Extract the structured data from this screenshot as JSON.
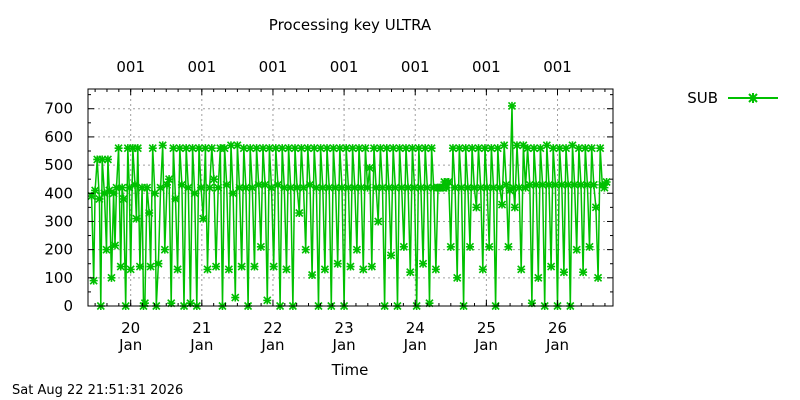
{
  "chart_data": {
    "type": "line",
    "title": "Processing key ULTRA",
    "xlabel": "Time",
    "ylabel": "",
    "ylim": [
      0,
      770
    ],
    "y_ticks": [
      0,
      100,
      200,
      300,
      400,
      500,
      600,
      700
    ],
    "x_range_days": [
      19.4,
      26.78
    ],
    "x_ticks": [
      {
        "day": 20,
        "label": "20",
        "sublabel": "Jan"
      },
      {
        "day": 21,
        "label": "21",
        "sublabel": "Jan"
      },
      {
        "day": 22,
        "label": "22",
        "sublabel": "Jan"
      },
      {
        "day": 23,
        "label": "23",
        "sublabel": "Jan"
      },
      {
        "day": 24,
        "label": "24",
        "sublabel": "Jan"
      },
      {
        "day": 25,
        "label": "25",
        "sublabel": "Jan"
      },
      {
        "day": 26,
        "label": "26",
        "sublabel": "Jan"
      }
    ],
    "top_ticks": [
      {
        "day": 20,
        "label": "001"
      },
      {
        "day": 21,
        "label": "001"
      },
      {
        "day": 22,
        "label": "001"
      },
      {
        "day": 23,
        "label": "001"
      },
      {
        "day": 24,
        "label": "001"
      },
      {
        "day": 25,
        "label": "001"
      },
      {
        "day": 26,
        "label": "001"
      }
    ],
    "grid": true,
    "legend": "top-right",
    "series": [
      {
        "name": "SUB",
        "color": "#00c000",
        "marker": "cross",
        "points": [
          [
            19.45,
            390
          ],
          [
            19.48,
            90
          ],
          [
            19.5,
            410
          ],
          [
            19.53,
            520
          ],
          [
            19.56,
            380
          ],
          [
            19.58,
            0
          ],
          [
            19.6,
            520
          ],
          [
            19.63,
            400
          ],
          [
            19.66,
            200
          ],
          [
            19.68,
            520
          ],
          [
            19.7,
            410
          ],
          [
            19.73,
            100
          ],
          [
            19.76,
            400
          ],
          [
            19.78,
            215
          ],
          [
            19.8,
            420
          ],
          [
            19.83,
            560
          ],
          [
            19.86,
            140
          ],
          [
            19.88,
            420
          ],
          [
            19.9,
            380
          ],
          [
            19.93,
            0
          ],
          [
            19.96,
            560
          ],
          [
            19.98,
            420
          ],
          [
            20.0,
            130
          ],
          [
            20.03,
            560
          ],
          [
            20.06,
            430
          ],
          [
            20.08,
            310
          ],
          [
            20.1,
            560
          ],
          [
            20.13,
            140
          ],
          [
            20.16,
            420
          ],
          [
            20.18,
            0
          ],
          [
            20.2,
            10
          ],
          [
            20.23,
            420
          ],
          [
            20.26,
            330
          ],
          [
            20.28,
            140
          ],
          [
            20.31,
            560
          ],
          [
            20.34,
            400
          ],
          [
            20.36,
            0
          ],
          [
            20.39,
            150
          ],
          [
            20.42,
            420
          ],
          [
            20.45,
            570
          ],
          [
            20.48,
            200
          ],
          [
            20.51,
            430
          ],
          [
            20.54,
            450
          ],
          [
            20.57,
            10
          ],
          [
            20.6,
            560
          ],
          [
            20.63,
            380
          ],
          [
            20.66,
            130
          ],
          [
            20.69,
            560
          ],
          [
            20.72,
            430
          ],
          [
            20.75,
            0
          ],
          [
            20.78,
            560
          ],
          [
            20.81,
            420
          ],
          [
            20.84,
            10
          ],
          [
            20.87,
            560
          ],
          [
            20.9,
            400
          ],
          [
            20.93,
            0
          ],
          [
            20.96,
            560
          ],
          [
            20.99,
            420
          ],
          [
            21.02,
            310
          ],
          [
            21.05,
            560
          ],
          [
            21.08,
            130
          ],
          [
            21.11,
            420
          ],
          [
            21.14,
            560
          ],
          [
            21.17,
            450
          ],
          [
            21.2,
            140
          ],
          [
            21.23,
            420
          ],
          [
            21.26,
            560
          ],
          [
            21.29,
            0
          ],
          [
            21.32,
            560
          ],
          [
            21.35,
            430
          ],
          [
            21.38,
            130
          ],
          [
            21.41,
            570
          ],
          [
            21.44,
            400
          ],
          [
            21.47,
            30
          ],
          [
            21.5,
            570
          ],
          [
            21.53,
            420
          ],
          [
            21.56,
            140
          ],
          [
            21.59,
            560
          ],
          [
            21.62,
            420
          ],
          [
            21.65,
            0
          ],
          [
            21.68,
            560
          ],
          [
            21.71,
            420
          ],
          [
            21.74,
            140
          ],
          [
            21.77,
            560
          ],
          [
            21.8,
            430
          ],
          [
            21.83,
            210
          ],
          [
            21.86,
            560
          ],
          [
            21.89,
            430
          ],
          [
            21.92,
            20
          ],
          [
            21.95,
            560
          ],
          [
            21.98,
            420
          ],
          [
            22.01,
            140
          ],
          [
            22.04,
            560
          ],
          [
            22.07,
            430
          ],
          [
            22.1,
            0
          ],
          [
            22.13,
            560
          ],
          [
            22.16,
            420
          ],
          [
            22.19,
            130
          ],
          [
            22.22,
            560
          ],
          [
            22.25,
            420
          ],
          [
            22.28,
            0
          ],
          [
            22.31,
            560
          ],
          [
            22.34,
            420
          ],
          [
            22.37,
            330
          ],
          [
            22.4,
            560
          ],
          [
            22.43,
            420
          ],
          [
            22.46,
            200
          ],
          [
            22.49,
            560
          ],
          [
            22.52,
            430
          ],
          [
            22.55,
            110
          ],
          [
            22.58,
            560
          ],
          [
            22.61,
            420
          ],
          [
            22.64,
            0
          ],
          [
            22.67,
            560
          ],
          [
            22.7,
            420
          ],
          [
            22.73,
            130
          ],
          [
            22.76,
            560
          ],
          [
            22.79,
            420
          ],
          [
            22.82,
            0
          ],
          [
            22.85,
            560
          ],
          [
            22.88,
            420
          ],
          [
            22.91,
            150
          ],
          [
            22.94,
            560
          ],
          [
            22.97,
            420
          ],
          [
            23.0,
            0
          ],
          [
            23.03,
            560
          ],
          [
            23.06,
            420
          ],
          [
            23.09,
            140
          ],
          [
            23.12,
            560
          ],
          [
            23.15,
            420
          ],
          [
            23.18,
            200
          ],
          [
            23.21,
            560
          ],
          [
            23.24,
            420
          ],
          [
            23.27,
            130
          ],
          [
            23.3,
            560
          ],
          [
            23.33,
            420
          ],
          [
            23.36,
            490
          ],
          [
            23.39,
            140
          ],
          [
            23.42,
            560
          ],
          [
            23.45,
            420
          ],
          [
            23.48,
            300
          ],
          [
            23.51,
            560
          ],
          [
            23.54,
            420
          ],
          [
            23.57,
            0
          ],
          [
            23.6,
            560
          ],
          [
            23.63,
            420
          ],
          [
            23.66,
            180
          ],
          [
            23.69,
            560
          ],
          [
            23.72,
            420
          ],
          [
            23.75,
            0
          ],
          [
            23.78,
            560
          ],
          [
            23.81,
            420
          ],
          [
            23.84,
            210
          ],
          [
            23.87,
            560
          ],
          [
            23.9,
            420
          ],
          [
            23.93,
            120
          ],
          [
            23.96,
            560
          ],
          [
            23.99,
            420
          ],
          [
            24.02,
            0
          ],
          [
            24.05,
            560
          ],
          [
            24.08,
            420
          ],
          [
            24.11,
            150
          ],
          [
            24.14,
            560
          ],
          [
            24.17,
            420
          ],
          [
            24.2,
            10
          ],
          [
            24.23,
            560
          ],
          [
            24.26,
            420
          ],
          [
            24.29,
            130
          ],
          [
            24.32,
            420
          ],
          [
            24.35,
            420
          ],
          [
            24.38,
            420
          ],
          [
            24.41,
            440
          ],
          [
            24.44,
            420
          ],
          [
            24.47,
            440
          ],
          [
            24.5,
            210
          ],
          [
            24.53,
            560
          ],
          [
            24.56,
            420
          ],
          [
            24.59,
            100
          ],
          [
            24.62,
            560
          ],
          [
            24.65,
            420
          ],
          [
            24.68,
            0
          ],
          [
            24.71,
            560
          ],
          [
            24.74,
            420
          ],
          [
            24.77,
            210
          ],
          [
            24.8,
            560
          ],
          [
            24.83,
            420
          ],
          [
            24.86,
            350
          ],
          [
            24.89,
            560
          ],
          [
            24.92,
            420
          ],
          [
            24.95,
            130
          ],
          [
            24.98,
            560
          ],
          [
            25.01,
            420
          ],
          [
            25.04,
            210
          ],
          [
            25.07,
            560
          ],
          [
            25.1,
            420
          ],
          [
            25.13,
            0
          ],
          [
            25.16,
            560
          ],
          [
            25.19,
            420
          ],
          [
            25.22,
            360
          ],
          [
            25.25,
            570
          ],
          [
            25.28,
            430
          ],
          [
            25.31,
            210
          ],
          [
            25.33,
            410
          ],
          [
            25.36,
            710
          ],
          [
            25.38,
            420
          ],
          [
            25.4,
            350
          ],
          [
            25.43,
            570
          ],
          [
            25.46,
            420
          ],
          [
            25.49,
            130
          ],
          [
            25.52,
            570
          ],
          [
            25.55,
            420
          ],
          [
            25.58,
            560
          ],
          [
            25.61,
            430
          ],
          [
            25.64,
            10
          ],
          [
            25.67,
            560
          ],
          [
            25.7,
            430
          ],
          [
            25.73,
            100
          ],
          [
            25.76,
            560
          ],
          [
            25.79,
            430
          ],
          [
            25.82,
            0
          ],
          [
            25.85,
            570
          ],
          [
            25.88,
            430
          ],
          [
            25.91,
            140
          ],
          [
            25.94,
            560
          ],
          [
            25.97,
            430
          ],
          [
            26.0,
            0
          ],
          [
            26.03,
            560
          ],
          [
            26.06,
            430
          ],
          [
            26.09,
            120
          ],
          [
            26.12,
            560
          ],
          [
            26.15,
            430
          ],
          [
            26.18,
            0
          ],
          [
            26.21,
            570
          ],
          [
            26.24,
            430
          ],
          [
            26.27,
            200
          ],
          [
            26.3,
            560
          ],
          [
            26.33,
            430
          ],
          [
            26.36,
            120
          ],
          [
            26.39,
            560
          ],
          [
            26.42,
            430
          ],
          [
            26.45,
            210
          ],
          [
            26.48,
            560
          ],
          [
            26.51,
            430
          ],
          [
            26.54,
            350
          ],
          [
            26.57,
            100
          ],
          [
            26.6,
            560
          ],
          [
            26.63,
            430
          ],
          [
            26.66,
            420
          ],
          [
            26.69,
            440
          ]
        ]
      }
    ],
    "footer_timestamp": "Sat Aug 22 21:51:31 2026"
  }
}
